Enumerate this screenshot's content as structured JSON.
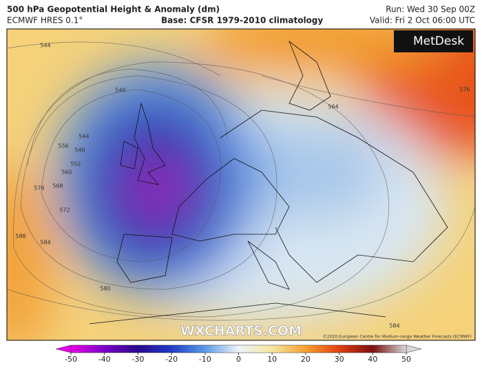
{
  "header": {
    "title": "500 hPa Geopotential Height & Anomaly (dm)",
    "model": "ECMWF HRES 0.1°",
    "base": "Base: CFSR 1979-2010 climatology",
    "run": "Run: Wed 30 Sep 00Z",
    "valid": "Valid: Fri 2 Oct 06:00 UTC"
  },
  "map": {
    "logo": "MetDesk",
    "watermark": "WXCHARTS.COM",
    "copyright": "©2020 European Centre for Medium-range Weather Forecasts (ECMWF)",
    "contour_labels": [
      "544",
      "540",
      "544",
      "556",
      "548",
      "552",
      "560",
      "576",
      "568",
      "572",
      "588",
      "584",
      "580",
      "584",
      "564",
      "576"
    ]
  },
  "colorbar": {
    "range": [
      -50,
      50
    ],
    "ticks": [
      -50,
      -40,
      -30,
      -20,
      -10,
      0,
      10,
      20,
      30,
      40,
      50
    ],
    "colors": [
      "#e600e6",
      "#7a00c8",
      "#2a0a8c",
      "#1e3cc8",
      "#5a9be6",
      "#eef4fa",
      "#f5e6a0",
      "#f5a030",
      "#e04010",
      "#7a1010",
      "#d8d8d8"
    ]
  }
}
